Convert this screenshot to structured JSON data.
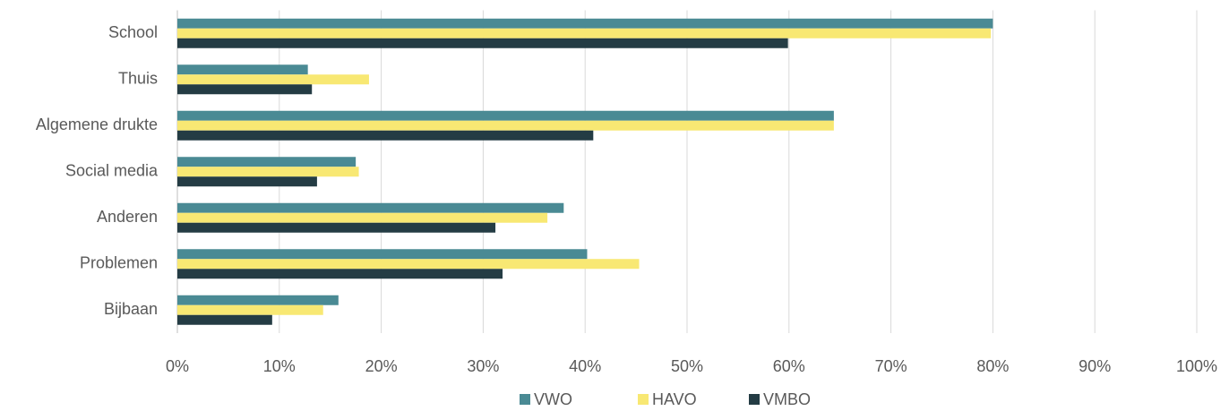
{
  "chart_data": {
    "type": "bar",
    "orientation": "horizontal",
    "categories": [
      "School",
      "Thuis",
      "Algemene drukte",
      "Social media",
      "Anderen",
      "Problemen",
      "Bijbaan"
    ],
    "series": [
      {
        "name": "VWO",
        "color": "#4a8a94",
        "values": [
          80.0,
          12.8,
          64.4,
          17.5,
          37.9,
          40.2,
          15.8
        ]
      },
      {
        "name": "HAVO",
        "color": "#f8e873",
        "values": [
          79.8,
          18.8,
          64.4,
          17.8,
          36.3,
          45.3,
          14.3
        ]
      },
      {
        "name": "VMBO",
        "color": "#243c44",
        "values": [
          59.9,
          13.2,
          40.8,
          13.7,
          31.2,
          31.9,
          9.3
        ]
      }
    ],
    "xlim": [
      0,
      100
    ],
    "xticks": [
      {
        "value": 0,
        "label": "0%"
      },
      {
        "value": 10,
        "label": "10%"
      },
      {
        "value": 20,
        "label": "20%"
      },
      {
        "value": 30,
        "label": "30%"
      },
      {
        "value": 40,
        "label": "40%"
      },
      {
        "value": 50,
        "label": "50%"
      },
      {
        "value": 60,
        "label": "60%"
      },
      {
        "value": 70,
        "label": "70%"
      },
      {
        "value": 80,
        "label": "80%"
      },
      {
        "value": 90,
        "label": "90%"
      },
      {
        "value": 100,
        "label": "100%"
      }
    ],
    "grid": true,
    "legend": "bottom"
  }
}
